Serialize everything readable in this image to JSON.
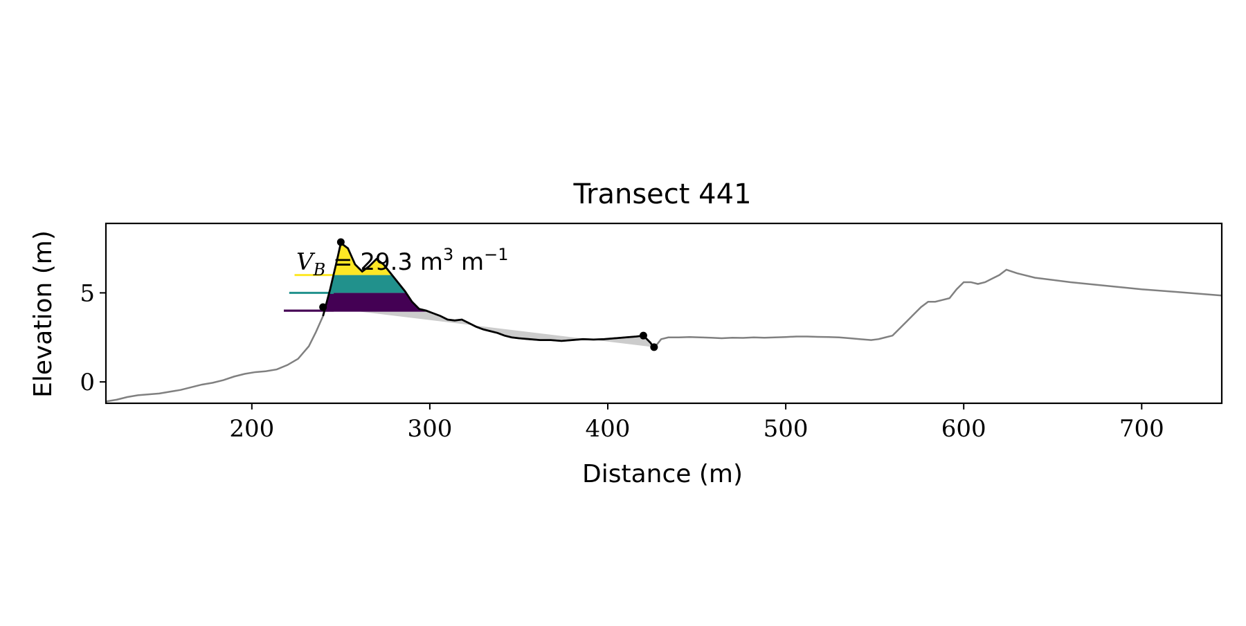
{
  "chart_data": {
    "type": "line",
    "title": "Transect 441",
    "xlabel": "Distance (m)",
    "ylabel": "Elevation (m)",
    "xlim": [
      118,
      745
    ],
    "ylim": [
      -1.2,
      8.9
    ],
    "xticks": [
      200,
      300,
      400,
      500,
      600,
      700
    ],
    "yticks": [
      0,
      5
    ],
    "grid": false,
    "legend": "none",
    "annotation": {
      "text_before": "29.3 m",
      "sup1": "3",
      "text_mid": " m",
      "sup2": "−1",
      "symbol": "V",
      "symbol_sub": "B"
    },
    "profile": {
      "color": "#808080",
      "x": [
        118,
        124,
        130,
        136,
        142,
        148,
        154,
        160,
        166,
        172,
        178,
        184,
        190,
        196,
        202,
        208,
        214,
        220,
        226,
        232,
        236,
        240,
        244,
        248,
        250,
        254,
        258,
        262,
        266,
        270,
        274,
        278,
        282,
        286,
        290,
        294,
        298,
        302,
        306,
        310,
        314,
        318,
        322,
        326,
        330,
        334,
        338,
        342,
        346,
        350,
        356,
        362,
        368,
        374,
        380,
        386,
        392,
        398,
        404,
        410,
        416,
        420,
        424,
        426,
        430,
        434,
        440,
        446,
        452,
        458,
        464,
        470,
        476,
        482,
        488,
        494,
        500,
        506,
        512,
        518,
        524,
        530,
        536,
        542,
        548,
        552,
        556,
        560,
        564,
        568,
        572,
        576,
        580,
        584,
        588,
        592,
        596,
        600,
        604,
        608,
        612,
        616,
        620,
        624,
        630,
        640,
        660,
        680,
        700,
        720,
        745
      ],
      "y": [
        -1.1,
        -1.0,
        -0.85,
        -0.75,
        -0.7,
        -0.65,
        -0.55,
        -0.45,
        -0.3,
        -0.15,
        -0.05,
        0.1,
        0.3,
        0.45,
        0.55,
        0.6,
        0.7,
        0.95,
        1.3,
        2.0,
        2.8,
        3.7,
        5.2,
        6.9,
        7.8,
        7.5,
        6.6,
        6.2,
        6.5,
        6.9,
        6.6,
        6.1,
        5.6,
        5.1,
        4.5,
        4.1,
        4.0,
        3.85,
        3.7,
        3.5,
        3.45,
        3.5,
        3.3,
        3.1,
        2.95,
        2.85,
        2.75,
        2.6,
        2.5,
        2.45,
        2.4,
        2.35,
        2.35,
        2.3,
        2.35,
        2.4,
        2.38,
        2.4,
        2.45,
        2.5,
        2.55,
        2.6,
        2.2,
        1.9,
        2.4,
        2.5,
        2.5,
        2.52,
        2.5,
        2.48,
        2.45,
        2.48,
        2.47,
        2.5,
        2.48,
        2.5,
        2.52,
        2.55,
        2.55,
        2.53,
        2.52,
        2.5,
        2.45,
        2.4,
        2.35,
        2.4,
        2.5,
        2.6,
        3.0,
        3.4,
        3.8,
        4.2,
        4.5,
        4.5,
        4.6,
        4.7,
        5.2,
        5.6,
        5.6,
        5.5,
        5.6,
        5.8,
        6.0,
        6.3,
        6.1,
        5.85,
        5.6,
        5.4,
        5.2,
        5.05,
        4.85
      ]
    },
    "dune": {
      "color": "#000000",
      "toe_x": 240,
      "toe_y": 4.2,
      "crest_x": 250,
      "crest_y": 7.85,
      "heel_x": 420,
      "heel_y": 2.6,
      "end_x": 426,
      "end_y": 1.95,
      "baseline_end_x": 426,
      "baseline_end_y": 1.95,
      "baseline_color": "#cccccc"
    },
    "bands": [
      {
        "level": 4.0,
        "top": 5.0,
        "color": "#440154",
        "line_start_x": 218
      },
      {
        "level": 5.0,
        "top": 6.0,
        "color": "#21918c",
        "line_start_x": 221
      },
      {
        "level": 6.0,
        "top": 9.0,
        "color": "#fde725",
        "line_start_x": 224
      }
    ]
  }
}
